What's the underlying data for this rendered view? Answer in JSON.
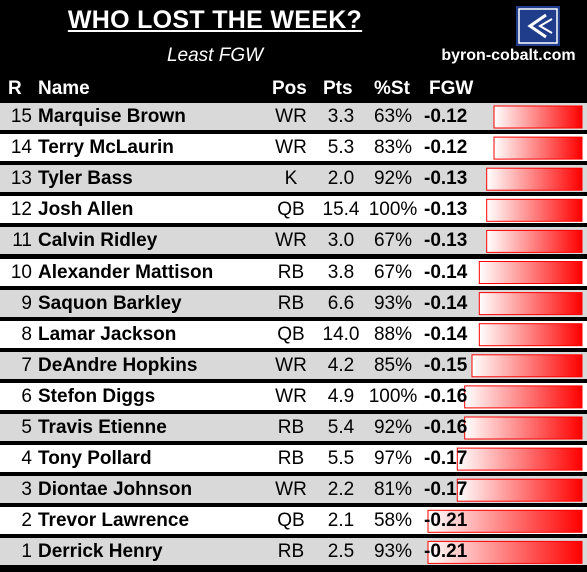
{
  "header": {
    "title": "WHO LOST THE WEEK?",
    "subtitle": "Least FGW",
    "site": "byron-cobalt.com",
    "logo_icon": "cobalt-logo-icon"
  },
  "columns": [
    "R",
    "Name",
    "Pos",
    "Pts",
    "%St",
    "FGW"
  ],
  "rows": [
    {
      "rank": "15",
      "name": "Marquise Brown",
      "pos": "WR",
      "pts": "3.3",
      "st": "63%",
      "fgw": "-0.12"
    },
    {
      "rank": "14",
      "name": "Terry McLaurin",
      "pos": "WR",
      "pts": "5.3",
      "st": "83%",
      "fgw": "-0.12"
    },
    {
      "rank": "13",
      "name": "Tyler Bass",
      "pos": "K",
      "pts": "2.0",
      "st": "92%",
      "fgw": "-0.13"
    },
    {
      "rank": "12",
      "name": "Josh Allen",
      "pos": "QB",
      "pts": "15.4",
      "st": "100%",
      "fgw": "-0.13"
    },
    {
      "rank": "11",
      "name": "Calvin Ridley",
      "pos": "WR",
      "pts": "3.0",
      "st": "67%",
      "fgw": "-0.13"
    },
    {
      "rank": "10",
      "name": "Alexander Mattison",
      "pos": "RB",
      "pts": "3.8",
      "st": "67%",
      "fgw": "-0.14"
    },
    {
      "rank": "9",
      "name": "Saquon Barkley",
      "pos": "RB",
      "pts": "6.6",
      "st": "93%",
      "fgw": "-0.14"
    },
    {
      "rank": "8",
      "name": "Lamar Jackson",
      "pos": "QB",
      "pts": "14.0",
      "st": "88%",
      "fgw": "-0.14"
    },
    {
      "rank": "7",
      "name": "DeAndre Hopkins",
      "pos": "WR",
      "pts": "4.2",
      "st": "85%",
      "fgw": "-0.15"
    },
    {
      "rank": "6",
      "name": "Stefon Diggs",
      "pos": "WR",
      "pts": "4.9",
      "st": "100%",
      "fgw": "-0.16"
    },
    {
      "rank": "5",
      "name": "Travis Etienne",
      "pos": "RB",
      "pts": "5.4",
      "st": "92%",
      "fgw": "-0.16"
    },
    {
      "rank": "4",
      "name": "Tony Pollard",
      "pos": "RB",
      "pts": "5.5",
      "st": "97%",
      "fgw": "-0.17"
    },
    {
      "rank": "3",
      "name": "Diontae Johnson",
      "pos": "WR",
      "pts": "2.2",
      "st": "81%",
      "fgw": "-0.17"
    },
    {
      "rank": "2",
      "name": "Trevor Lawrence",
      "pos": "QB",
      "pts": "2.1",
      "st": "58%",
      "fgw": "-0.21"
    },
    {
      "rank": "1",
      "name": "Derrick Henry",
      "pos": "RB",
      "pts": "2.5",
      "st": "93%",
      "fgw": "-0.21"
    }
  ],
  "chart_data": {
    "type": "table",
    "categories": [
      "Marquise Brown",
      "Terry McLaurin",
      "Tyler Bass",
      "Josh Allen",
      "Calvin Ridley",
      "Alexander Mattison",
      "Saquon Barkley",
      "Lamar Jackson",
      "DeAndre Hopkins",
      "Stefon Diggs",
      "Travis Etienne",
      "Tony Pollard",
      "Diontae Johnson",
      "Trevor Lawrence",
      "Derrick Henry"
    ],
    "series": [
      {
        "values": [
          -0.12,
          -0.12,
          -0.13,
          -0.13,
          -0.13,
          -0.14,
          -0.14,
          -0.14,
          -0.15,
          -0.16,
          -0.16,
          -0.17,
          -0.17,
          -0.21,
          -0.21
        ]
      }
    ],
    "bar_color": "#ff0000",
    "row_colors": [
      "#d9d9d9",
      "#ffffff"
    ]
  }
}
